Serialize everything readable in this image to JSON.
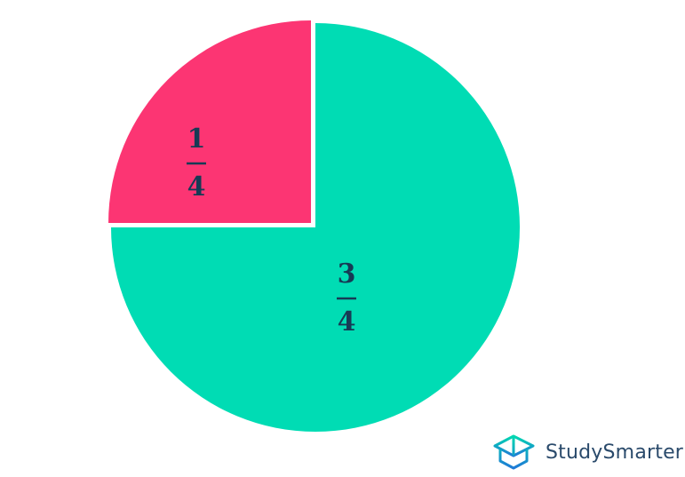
{
  "chart_data": {
    "type": "pie",
    "slices": [
      {
        "label_numerator": "3",
        "label_denominator": "4",
        "value": 0.75,
        "color": "#00DCB4"
      },
      {
        "label_numerator": "1",
        "label_denominator": "4",
        "value": 0.25,
        "color": "#FC3573",
        "exploded": true
      }
    ],
    "start": "12 o'clock, clockwise",
    "label_color": "#173A55"
  },
  "logo": {
    "text": "StudySmarter",
    "color": "#2A4A6B",
    "icon": "open-box-icon"
  }
}
